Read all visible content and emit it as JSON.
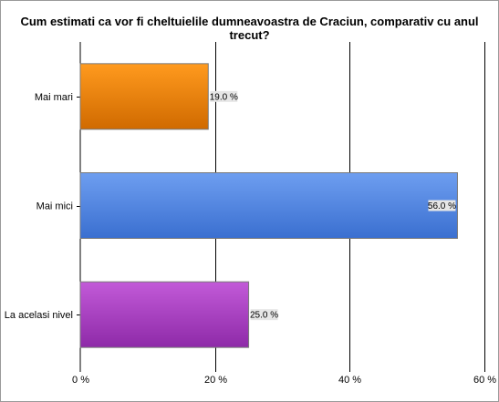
{
  "chart_data": {
    "type": "bar",
    "orientation": "horizontal",
    "title": "Cum estimati ca vor fi cheltuielile dumneavoastra de Craciun, comparativ cu anul trecut?",
    "categories": [
      "Mai mari",
      "Mai mici",
      "La acelasi nivel"
    ],
    "values": [
      19.0,
      56.0,
      25.0
    ],
    "value_labels": [
      "19.0 %",
      "56.0 %",
      "25.0 %"
    ],
    "xlim": [
      0,
      60
    ],
    "xticks": [
      0,
      20,
      40,
      60
    ],
    "xtick_labels": [
      "0 %",
      "20 %",
      "40 %",
      "60 %"
    ],
    "grid": true,
    "colors": {
      "Mai mari": [
        "#ff9a1e",
        "#d06a00"
      ],
      "Mai mici": [
        "#6e9ef0",
        "#3a6fd0"
      ],
      "La acelasi nivel": [
        "#c25ad8",
        "#8e2aa8"
      ]
    }
  }
}
